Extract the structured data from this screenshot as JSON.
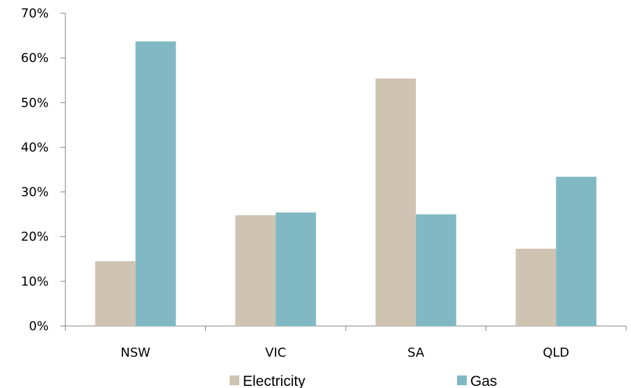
{
  "chart_data": {
    "type": "bar",
    "categories": [
      "NSW",
      "VIC",
      "SA",
      "QLD"
    ],
    "series": [
      {
        "name": "Electricity",
        "values": [
          14.5,
          24.8,
          55.4,
          17.3
        ],
        "color": "#cfc3b2"
      },
      {
        "name": "Gas",
        "values": [
          63.7,
          25.4,
          25.0,
          33.4
        ],
        "color": "#80b9c3"
      }
    ],
    "ylim": [
      0,
      70
    ],
    "yticks": [
      "0%",
      "10%",
      "20%",
      "30%",
      "40%",
      "50%",
      "60%",
      "70%"
    ],
    "grid": false,
    "legend_position": "bottom"
  }
}
